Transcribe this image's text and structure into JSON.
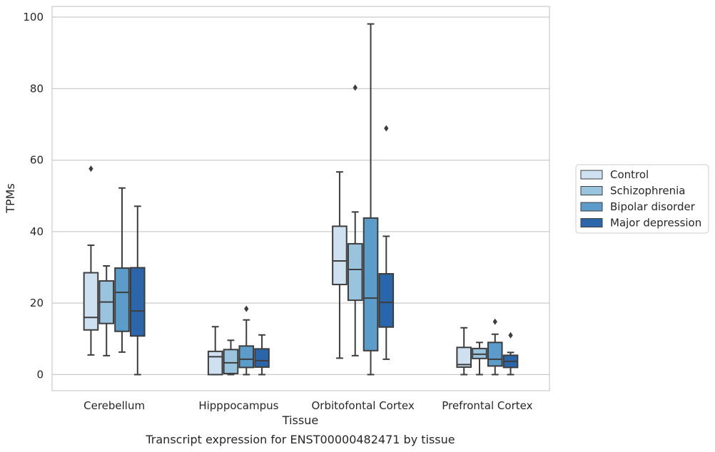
{
  "chart_data": {
    "type": "box",
    "xlabel": "Tissue",
    "ylabel": "TPMs",
    "caption": "Transcript expression for ENST00000482471 by tissue",
    "categories": [
      "Cerebellum",
      "Hipppocampus",
      "Orbitofontal Cortex",
      "Prefrontal Cortex"
    ],
    "ylim": [
      -4.5,
      103
    ],
    "yticks": [
      0,
      20,
      40,
      60,
      80,
      100
    ],
    "grid": true,
    "legend_position": "center-right",
    "series": [
      {
        "name": "Control",
        "color": "#cfe0f0",
        "boxes": [
          {
            "whislo": 5.5,
            "q1": 12.5,
            "med": 16.0,
            "q3": 28.5,
            "whishi": 36.2,
            "fliers": [
              57.6
            ]
          },
          {
            "whislo": 0.0,
            "q1": 0.0,
            "med": 5.0,
            "q3": 6.5,
            "whishi": 13.4,
            "fliers": []
          },
          {
            "whislo": 4.6,
            "q1": 25.2,
            "med": 31.8,
            "q3": 41.5,
            "whishi": 56.7,
            "fliers": []
          },
          {
            "whislo": 0.0,
            "q1": 2.1,
            "med": 2.8,
            "q3": 7.6,
            "whishi": 13.1,
            "fliers": []
          }
        ]
      },
      {
        "name": "Schizophrenia",
        "color": "#9ac3de",
        "boxes": [
          {
            "whislo": 5.3,
            "q1": 14.3,
            "med": 20.3,
            "q3": 26.2,
            "whishi": 30.4,
            "fliers": []
          },
          {
            "whislo": 0.0,
            "q1": 0.3,
            "med": 3.3,
            "q3": 7.0,
            "whishi": 9.6,
            "fliers": []
          },
          {
            "whislo": 5.3,
            "q1": 20.8,
            "med": 29.4,
            "q3": 36.6,
            "whishi": 45.5,
            "fliers": [
              80.3
            ]
          },
          {
            "whislo": 0.0,
            "q1": 4.5,
            "med": 5.7,
            "q3": 7.3,
            "whishi": 9.0,
            "fliers": []
          }
        ]
      },
      {
        "name": "Bipolar disorder",
        "color": "#5c9ccb",
        "boxes": [
          {
            "whislo": 6.3,
            "q1": 12.1,
            "med": 23.0,
            "q3": 29.8,
            "whishi": 52.2,
            "fliers": []
          },
          {
            "whislo": 0.0,
            "q1": 2.0,
            "med": 4.3,
            "q3": 8.0,
            "whishi": 15.3,
            "fliers": [
              18.4
            ]
          },
          {
            "whislo": 0.0,
            "q1": 6.7,
            "med": 21.4,
            "q3": 43.8,
            "whishi": 98.1,
            "fliers": []
          },
          {
            "whislo": 0.0,
            "q1": 2.4,
            "med": 4.3,
            "q3": 9.0,
            "whishi": 11.3,
            "fliers": [
              14.8
            ]
          }
        ]
      },
      {
        "name": "Major depression",
        "color": "#2a66a9",
        "boxes": [
          {
            "whislo": 0.0,
            "q1": 10.8,
            "med": 17.8,
            "q3": 29.9,
            "whishi": 47.1,
            "fliers": []
          },
          {
            "whislo": 0.0,
            "q1": 2.1,
            "med": 3.9,
            "q3": 7.2,
            "whishi": 11.1,
            "fliers": []
          },
          {
            "whislo": 4.3,
            "q1": 13.3,
            "med": 20.2,
            "q3": 28.2,
            "whishi": 38.7,
            "fliers": [
              68.9
            ]
          },
          {
            "whislo": 0.0,
            "q1": 2.0,
            "med": 3.7,
            "q3": 5.4,
            "whishi": 6.2,
            "fliers": [
              11.0
            ]
          }
        ]
      }
    ]
  }
}
